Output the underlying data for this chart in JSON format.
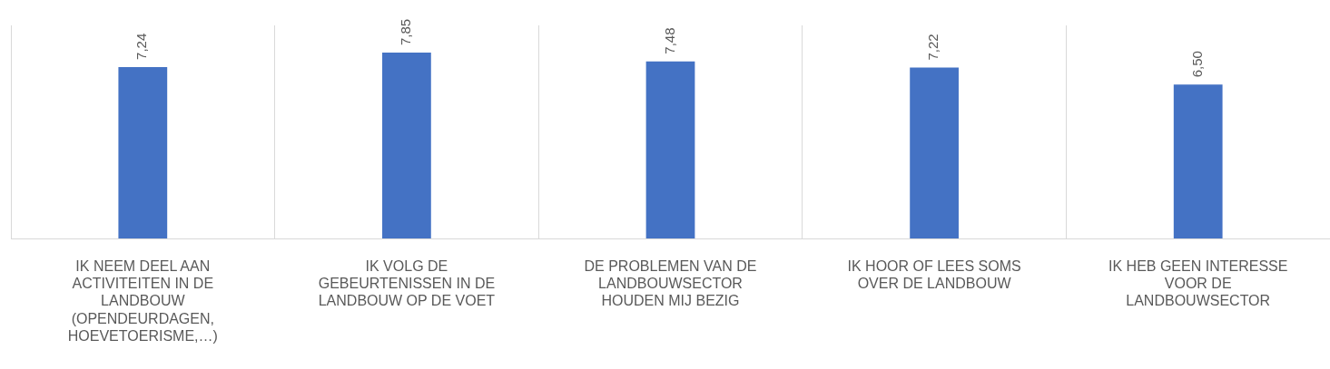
{
  "chart_data": {
    "type": "bar",
    "categories": [
      "IK NEEM DEEL AAN ACTIVITEITEN IN DE LANDBOUW (OPENDEURDAGEN, HOEVETOERISME,…)",
      "IK VOLG DE GEBEURTENISSEN IN DE LANDBOUW OP DE VOET",
      "DE PROBLEMEN VAN DE LANDBOUWSECTOR HOUDEN MIJ BEZIG",
      "IK HOOR OF LEES SOMS OVER DE LANDBOUW",
      "IK HEB GEEN INTERESSE VOOR DE LANDBOUWSECTOR"
    ],
    "values": [
      7.24,
      7.85,
      7.48,
      7.22,
      6.5
    ],
    "value_labels": [
      "7,24",
      "7,85",
      "7,48",
      "7,22",
      "6,50"
    ],
    "color": "#4472c4",
    "ylim": [
      0,
      9
    ],
    "tick_labels": "x",
    "grid": "x"
  }
}
